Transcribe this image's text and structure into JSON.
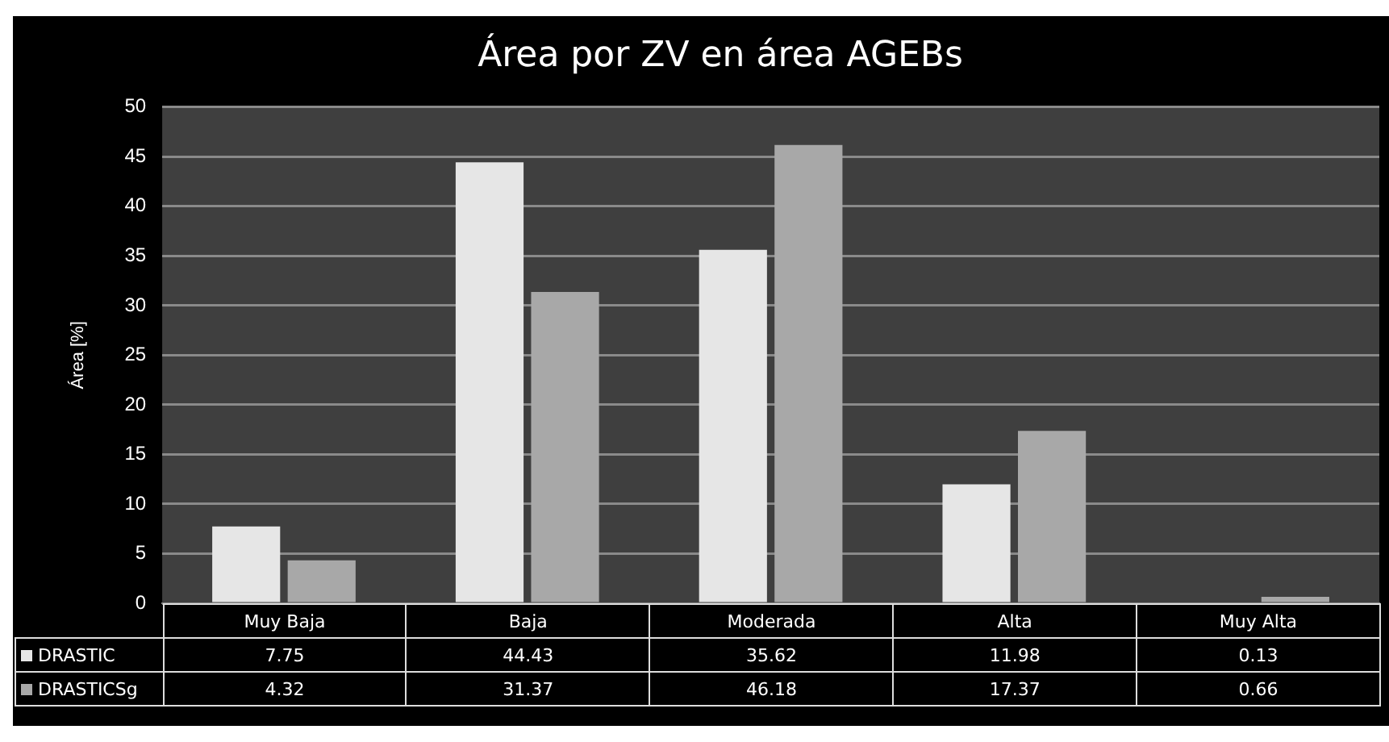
{
  "chart_data": {
    "type": "bar",
    "title": "Área por ZV en área AGEBs",
    "ylabel": "Área [%]",
    "categories": [
      "Muy Baja",
      "Baja",
      "Moderada",
      "Alta",
      "Muy Alta"
    ],
    "series": [
      {
        "name": "DRASTIC",
        "color": "#e6e6e6",
        "values": [
          7.75,
          44.43,
          35.62,
          11.98,
          0.13
        ]
      },
      {
        "name": "DRASTICSg",
        "color": "#a8a8a8",
        "values": [
          4.32,
          31.37,
          46.18,
          17.37,
          0.66
        ]
      }
    ],
    "ylim": [
      0,
      50
    ],
    "yticks": [
      0,
      5,
      10,
      15,
      20,
      25,
      30,
      35,
      40,
      45,
      50
    ],
    "grid": "y",
    "legend": "bottom",
    "data_labels": true
  }
}
